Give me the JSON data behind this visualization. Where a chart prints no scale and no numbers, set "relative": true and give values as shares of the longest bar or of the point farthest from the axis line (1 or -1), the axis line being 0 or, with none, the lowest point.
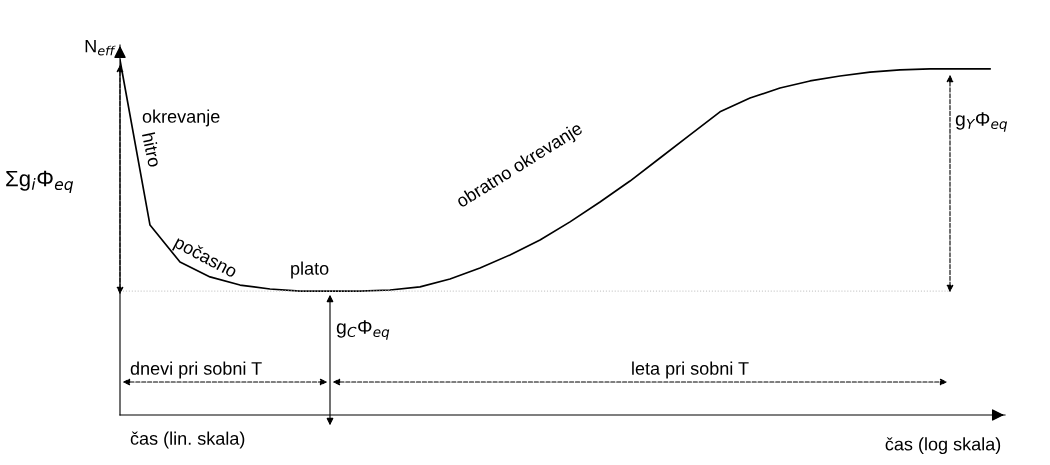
{
  "chart_data": {
    "type": "line",
    "relative": true,
    "color": "#000000",
    "line_style": "solid",
    "marker": "none",
    "legend": false,
    "tick_labels": false,
    "ylabel": "N$_{eff}$",
    "xlabel": "čas (log skala)",
    "categories": [
      null,
      null,
      null,
      null,
      null,
      null,
      null,
      null,
      null,
      null,
      null,
      null,
      null,
      null,
      null,
      null,
      null,
      null,
      null,
      null,
      null,
      null,
      null,
      null,
      null,
      null,
      null,
      null,
      null,
      null
    ],
    "values": [
      1.0,
      0.535,
      0.431,
      0.389,
      0.366,
      0.355,
      0.349,
      0.349,
      0.349,
      0.352,
      0.361,
      0.383,
      0.414,
      0.451,
      0.493,
      0.544,
      0.6,
      0.659,
      0.724,
      0.789,
      0.854,
      0.893,
      0.921,
      0.941,
      0.955,
      0.966,
      0.972,
      0.975,
      0.975,
      0.975
    ],
    "ref_lines": [
      {
        "axis": "y",
        "value": 0.349,
        "color": "#cccccc",
        "line_style": "dotted"
      }
    ],
    "annotations": [
      "okrevanje",
      "hitro",
      "počasno",
      "plato",
      "obratno okrevanje",
      "Σg$_{i}$Φ$_{eq}$",
      "g$_{C}$Φ$_{eq}$",
      "g$_{Y}$Φ$_{eq}$",
      "dnevi pri sobni T",
      "leta pri sobni T",
      "čas (lin. skala)"
    ]
  }
}
